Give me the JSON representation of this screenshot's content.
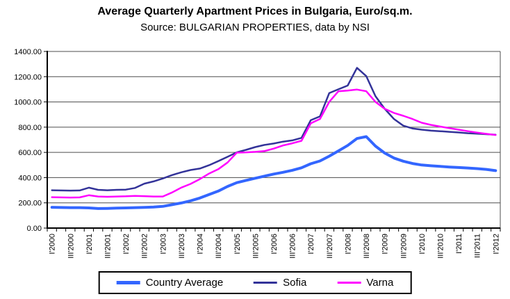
{
  "header": {
    "title": "Average Quarterly Apartment Prices in Bulgaria, Euro/sq.m.",
    "subtitle": "Source: BULGARIAN PROPERTIES, data by NSI"
  },
  "chart_data": {
    "type": "line",
    "title": "Average Quarterly Apartment Prices in Bulgaria, Euro/sq.m.",
    "subtitle": "Source: BULGARIAN PROPERTIES, data by NSI",
    "xlabel": "",
    "ylabel": "",
    "ylim": [
      0,
      1400
    ],
    "grid": true,
    "legend_position": "bottom",
    "ytick_values": [
      0,
      200,
      400,
      600,
      800,
      1000,
      1200,
      1400
    ],
    "ytick_labels": [
      "0.00",
      "200.00",
      "400.00",
      "600.00",
      "800.00",
      "1000.00",
      "1200.00",
      "1400.00"
    ],
    "xtick_step": 2,
    "categories": [
      "I'2000",
      "II'2000",
      "III'2000",
      "IV'2000",
      "I'2001",
      "II'2001",
      "III'2001",
      "IV'2001",
      "I'2002",
      "II'2002",
      "III'2002",
      "IV'2002",
      "I'2003",
      "II'2003",
      "III'2003",
      "IV'2003",
      "I'2004",
      "II'2004",
      "III'2004",
      "IV'2004",
      "I'2005",
      "II'2005",
      "III'2005",
      "IV'2005",
      "I'2006",
      "II'2006",
      "III'2006",
      "IV'2006",
      "I'2007",
      "II'2007",
      "III'2007",
      "IV'2007",
      "I'2008",
      "II'2008",
      "III'2008",
      "IV'2008",
      "I'2009",
      "II'2009",
      "III'2009",
      "IV'2009",
      "I'2010",
      "II'2010",
      "III'2010",
      "IV'2010",
      "I'2011",
      "II'2011",
      "III'2011",
      "IV'2011",
      "I'2012"
    ],
    "series": [
      {
        "name": "Country Average",
        "color": "#3366FF",
        "values": [
          165,
          163,
          162,
          162,
          160,
          155,
          156,
          158,
          160,
          162,
          164,
          167,
          172,
          185,
          199,
          216,
          238,
          266,
          293,
          330,
          360,
          378,
          395,
          412,
          428,
          442,
          458,
          478,
          510,
          532,
          570,
          612,
          655,
          710,
          725,
          650,
          595,
          555,
          530,
          512,
          500,
          494,
          489,
          484,
          480,
          476,
          471,
          465,
          455
        ]
      },
      {
        "name": "Sofia",
        "color": "#333399",
        "values": [
          300,
          298,
          297,
          298,
          320,
          303,
          300,
          303,
          305,
          318,
          352,
          370,
          393,
          420,
          442,
          460,
          472,
          498,
          531,
          565,
          600,
          620,
          642,
          659,
          670,
          685,
          695,
          715,
          855,
          885,
          1070,
          1100,
          1130,
          1270,
          1205,
          1045,
          945,
          865,
          812,
          790,
          780,
          772,
          768,
          763,
          758,
          752,
          748,
          744,
          740
        ]
      },
      {
        "name": "Varna",
        "color": "#FF00FF",
        "values": [
          245,
          243,
          242,
          243,
          260,
          250,
          248,
          250,
          252,
          255,
          253,
          250,
          250,
          282,
          321,
          350,
          388,
          432,
          467,
          520,
          598,
          600,
          604,
          610,
          630,
          655,
          672,
          692,
          830,
          865,
          1000,
          1085,
          1090,
          1098,
          1085,
          1000,
          945,
          913,
          890,
          865,
          835,
          818,
          805,
          792,
          780,
          768,
          757,
          747,
          738
        ]
      }
    ]
  }
}
